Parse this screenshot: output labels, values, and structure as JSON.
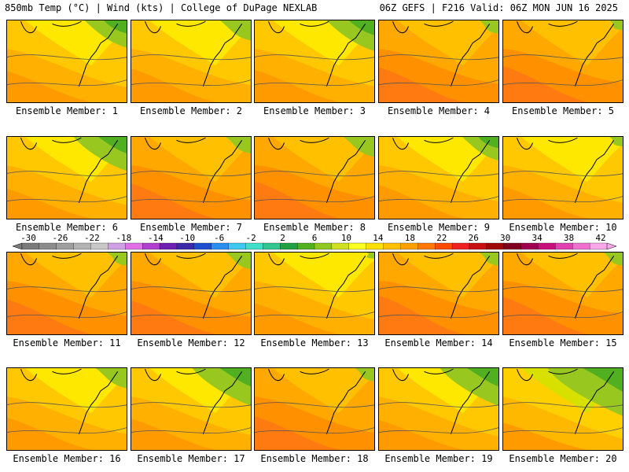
{
  "header": {
    "left": "850mb Temp (°C) | Wind (kts) | College of DuPage NEXLAB",
    "right": "06Z GEFS | F216 Valid: 06Z MON JUN 16 2025"
  },
  "member_label_prefix": "Ensemble Member:",
  "members": [
    {
      "label": "Ensemble Member: 1",
      "warmth": 0.45,
      "green_cover": 0.4,
      "style": "yellow"
    },
    {
      "label": "Ensemble Member: 2",
      "warmth": 0.55,
      "green_cover": 0.3,
      "style": "yellow"
    },
    {
      "label": "Ensemble Member: 3",
      "warmth": 0.5,
      "green_cover": 0.45,
      "style": "yellow"
    },
    {
      "label": "Ensemble Member: 4",
      "warmth": 0.6,
      "green_cover": 0.2,
      "style": "orange"
    },
    {
      "label": "Ensemble Member: 5",
      "warmth": 0.65,
      "green_cover": 0.15,
      "style": "orange"
    },
    {
      "label": "Ensemble Member: 6",
      "warmth": 0.4,
      "green_cover": 0.5,
      "style": "yellow"
    },
    {
      "label": "Ensemble Member: 7",
      "warmth": 0.6,
      "green_cover": 0.25,
      "style": "orange"
    },
    {
      "label": "Ensemble Member: 8",
      "warmth": 0.7,
      "green_cover": 0.3,
      "style": "orange"
    },
    {
      "label": "Ensemble Member: 9",
      "warmth": 0.55,
      "green_cover": 0.35,
      "style": "yellow"
    },
    {
      "label": "Ensemble Member: 10",
      "warmth": 0.5,
      "green_cover": 0.15,
      "style": "yellow"
    },
    {
      "label": "Ensemble Member: 11",
      "warmth": 0.6,
      "green_cover": 0.2,
      "style": "orange"
    },
    {
      "label": "Ensemble Member: 12",
      "warmth": 0.55,
      "green_cover": 0.25,
      "style": "orange"
    },
    {
      "label": "Ensemble Member: 13",
      "warmth": 0.45,
      "green_cover": 0.1,
      "style": "yellow"
    },
    {
      "label": "Ensemble Member: 14",
      "warmth": 0.75,
      "green_cover": 0.2,
      "style": "orange"
    },
    {
      "label": "Ensemble Member: 15",
      "warmth": 0.7,
      "green_cover": 0.2,
      "style": "orange"
    },
    {
      "label": "Ensemble Member: 16",
      "warmth": 0.5,
      "green_cover": 0.3,
      "style": "yellow"
    },
    {
      "label": "Ensemble Member: 17",
      "warmth": 0.45,
      "green_cover": 0.55,
      "style": "yellow"
    },
    {
      "label": "Ensemble Member: 18",
      "warmth": 0.55,
      "green_cover": 0.2,
      "style": "orange"
    },
    {
      "label": "Ensemble Member: 19",
      "warmth": 0.4,
      "green_cover": 0.55,
      "style": "yellow"
    },
    {
      "label": "Ensemble Member: 20",
      "warmth": 0.3,
      "green_cover": 0.7,
      "style": "green"
    }
  ],
  "colorbar": {
    "labels": [
      "-30",
      "-26",
      "-22",
      "-18",
      "-14",
      "-10",
      "-6",
      "-2",
      "2",
      "6",
      "10",
      "14",
      "18",
      "22",
      "26",
      "30",
      "34",
      "38",
      "42"
    ],
    "colors": [
      "#7a7a7a",
      "#8c8c8c",
      "#9e9e9e",
      "#b3b3b3",
      "#c8c8c8",
      "#cfa0e6",
      "#e070e8",
      "#b040d0",
      "#7020b0",
      "#3a2aa8",
      "#1e4ed0",
      "#2a8ef0",
      "#3ec8f0",
      "#40e0c8",
      "#30c890",
      "#20a040",
      "#50b020",
      "#90c820",
      "#d0e020",
      "#ffff20",
      "#ffe000",
      "#ffc000",
      "#ffa000",
      "#ff7800",
      "#ff4a00",
      "#f02020",
      "#c81010",
      "#a00808",
      "#800020",
      "#a00050",
      "#c8107a",
      "#e040b0",
      "#f070d0",
      "#f8a8e8"
    ]
  }
}
